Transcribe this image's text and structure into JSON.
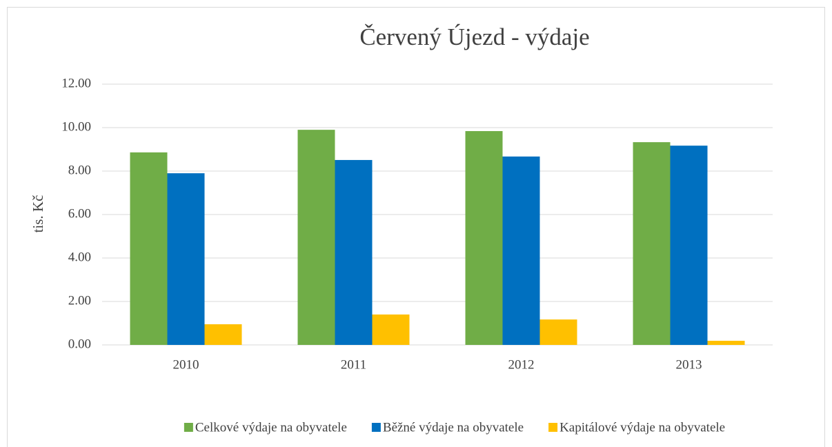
{
  "chart_data": {
    "type": "bar",
    "title": "Červený Újezd - výdaje",
    "y_label": "tis. Kč",
    "categories": [
      "2010",
      "2011",
      "2012",
      "2013"
    ],
    "series": [
      {
        "name": "Celkové výdaje na obyvatele",
        "color": "#70ad47",
        "values": [
          8.86,
          9.9,
          9.84,
          9.33
        ]
      },
      {
        "name": "Běžné výdaje na obyvatele",
        "color": "#0070c0",
        "values": [
          7.9,
          8.51,
          8.67,
          9.17
        ]
      },
      {
        "name": "Kapitálové výdaje na obyvatele",
        "color": "#ffc000",
        "values": [
          0.95,
          1.4,
          1.17,
          0.19
        ]
      }
    ],
    "ylim": [
      0,
      12
    ],
    "yticks": [
      {
        "value": 0,
        "label": "0.00"
      },
      {
        "value": 2,
        "label": "2.00"
      },
      {
        "value": 4,
        "label": "4.00"
      },
      {
        "value": 6,
        "label": "6.00"
      },
      {
        "value": 8,
        "label": "8.00"
      },
      {
        "value": 10,
        "label": "10.00"
      },
      {
        "value": 12,
        "label": "12.00"
      }
    ],
    "grid": true,
    "legend": "bottom"
  }
}
